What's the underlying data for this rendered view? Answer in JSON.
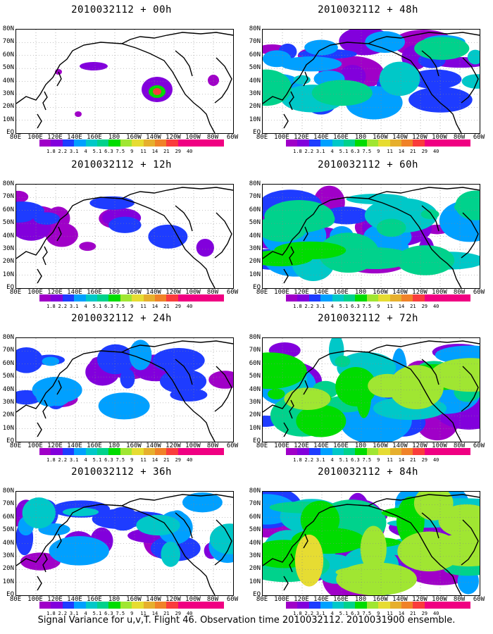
{
  "lat_labels": [
    "80N",
    "70N",
    "60N",
    "50N",
    "40N",
    "30N",
    "20N",
    "10N",
    "EQ"
  ],
  "lon_labels": [
    "80E",
    "100E",
    "120E",
    "140E",
    "160E",
    "180",
    "160W",
    "140W",
    "120W",
    "100W",
    "80W",
    "60W"
  ],
  "colorbar": {
    "labels": [
      "1.8",
      "2.2",
      "3.1",
      "4",
      "5.1",
      "6.3",
      "7.5",
      "9",
      "11",
      "14",
      "21",
      "29",
      "40"
    ],
    "colors": [
      "#a000c8",
      "#8200dc",
      "#1e3cff",
      "#00a0ff",
      "#00c8c8",
      "#00d28c",
      "#00dc00",
      "#a0e632",
      "#e6dc32",
      "#e6af2d",
      "#f08228",
      "#fa3c3c",
      "#f00082"
    ]
  },
  "panels": [
    {
      "title": "2010032112 + 00h",
      "intensity": 0
    },
    {
      "title": "2010032112 + 12h",
      "intensity": 1
    },
    {
      "title": "2010032112 + 24h",
      "intensity": 2
    },
    {
      "title": "2010032112 + 36h",
      "intensity": 3
    },
    {
      "title": "2010032112 + 48h",
      "intensity": 4
    },
    {
      "title": "2010032112 + 60h",
      "intensity": 5
    },
    {
      "title": "2010032112 + 72h",
      "intensity": 6
    },
    {
      "title": "2010032112 + 84h",
      "intensity": 7
    }
  ],
  "caption": "Signal Variance for u,v,T. Flight 46. Observation time 2010032112. 2010031900 ensemble."
}
